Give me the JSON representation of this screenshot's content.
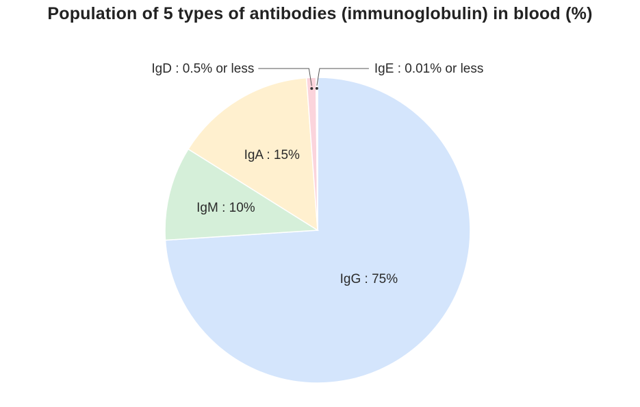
{
  "chart_data": {
    "type": "pie",
    "title": "Population of 5 types of antibodies (immunoglobulin) in blood (%)",
    "slices": [
      {
        "name": "IgG",
        "value": 75,
        "label": "IgG : 75%",
        "color": "#d4e5fc",
        "label_style": "inside"
      },
      {
        "name": "IgM",
        "value": 10,
        "label": "IgM : 10%",
        "color": "#d5efd9",
        "label_style": "inside"
      },
      {
        "name": "IgA",
        "value": 15,
        "label": "IgA : 15%",
        "color": "#fff0cf",
        "label_style": "inside"
      },
      {
        "name": "IgD",
        "value": 0.5,
        "label": "IgD : 0.5% or less",
        "color": "#fbd4dc",
        "label_style": "callout-left"
      },
      {
        "name": "IgE",
        "value": 0.01,
        "label": "IgE : 0.01% or less",
        "color": "#ffffff",
        "label_style": "callout-right"
      }
    ],
    "start_angle_deg": 0,
    "direction": "clockwise",
    "legend": "none"
  }
}
